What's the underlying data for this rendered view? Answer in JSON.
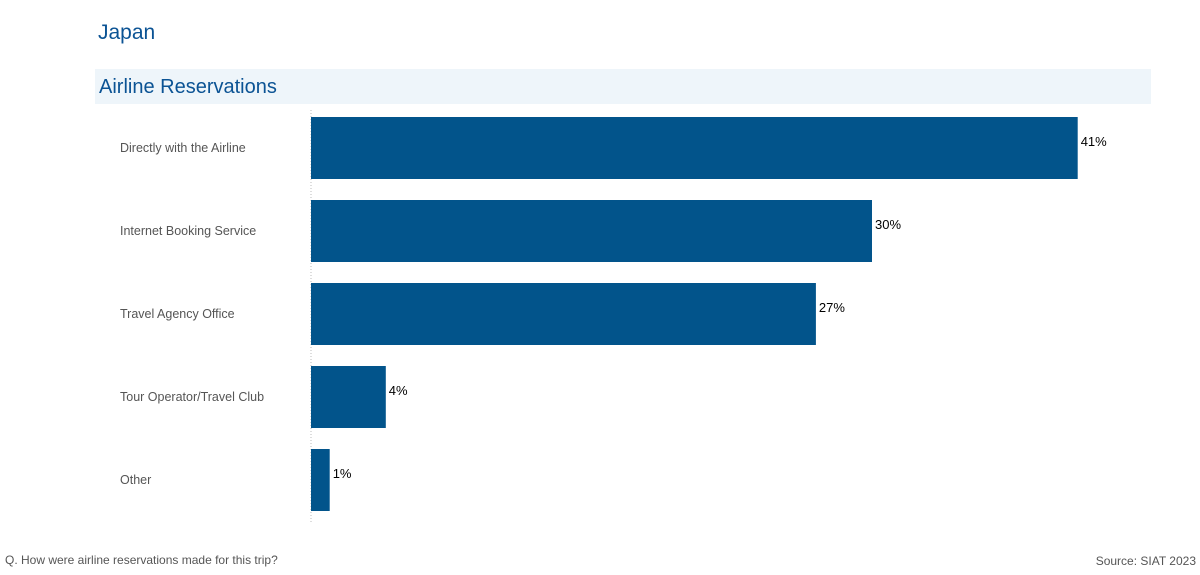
{
  "header": {
    "country": "Japan",
    "section_title": "Airline Reservations"
  },
  "footer": {
    "question": "Q. How were airline reservations made for this trip?",
    "source": "Source: SIAT 2023"
  },
  "colors": {
    "bar": "#02548b",
    "title": "#0b5394",
    "band": "#eef5fa"
  },
  "chart_data": {
    "type": "bar",
    "orientation": "horizontal",
    "categories": [
      "Directly with the Airline",
      "Internet Booking Service",
      "Travel Agency Office",
      "Tour Operator/Travel Club",
      "Other"
    ],
    "values": [
      41,
      30,
      27,
      4,
      1
    ],
    "value_labels": [
      "41%",
      "30%",
      "27%",
      "4%",
      "1%"
    ],
    "unit": "%",
    "grid": false
  }
}
